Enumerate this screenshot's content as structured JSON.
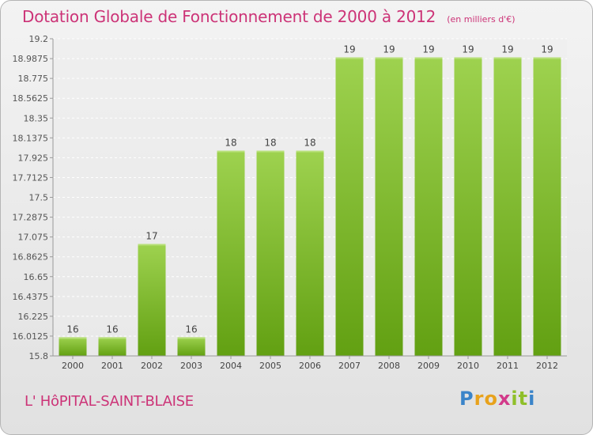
{
  "chart_data": {
    "type": "bar",
    "title": "Dotation Globale de Fonctionnement de 2000 à 2012",
    "unit": "(en milliers d'€)",
    "categories": [
      "2000",
      "2001",
      "2002",
      "2003",
      "2004",
      "2005",
      "2006",
      "2007",
      "2008",
      "2009",
      "2010",
      "2011",
      "2012"
    ],
    "values": [
      16,
      16,
      17,
      16,
      18,
      18,
      18,
      19,
      19,
      19,
      19,
      19,
      19
    ],
    "data_labels": [
      "16",
      "16",
      "17",
      "16",
      "18",
      "18",
      "18",
      "19",
      "19",
      "19",
      "19",
      "19",
      "19"
    ],
    "ylim": [
      15.8,
      19.2
    ],
    "yticks": [
      15.8,
      16.0125,
      16.225,
      16.4375,
      16.65,
      16.8625,
      17.075,
      17.2875,
      17.5,
      17.7125,
      17.925,
      18.1375,
      18.35,
      18.5625,
      18.775,
      18.9875,
      19.2
    ],
    "ytick_labels": [
      "15.8",
      "16.0125",
      "16.225",
      "16.4375",
      "16.65",
      "16.8625",
      "17.075",
      "17.2875",
      "17.5",
      "17.7125",
      "17.925",
      "18.1375",
      "18.35",
      "18.5625",
      "18.775",
      "18.9875",
      "19.2"
    ],
    "grid": true,
    "colors": {
      "bar_light": "#9ed24f",
      "bar_dark": "#62a012",
      "title": "#cc3377"
    }
  },
  "footer": {
    "town": "L' HôPITAL-SAINT-BLAISE",
    "logo_letters": [
      "P",
      "r",
      "o",
      "x",
      "i",
      "t",
      "i"
    ],
    "logo_colors": [
      "#3a84c9",
      "#e8a21c",
      "#e8a21c",
      "#d23a8a",
      "#8fbf2a",
      "#8fbf2a",
      "#3a84c9"
    ]
  }
}
